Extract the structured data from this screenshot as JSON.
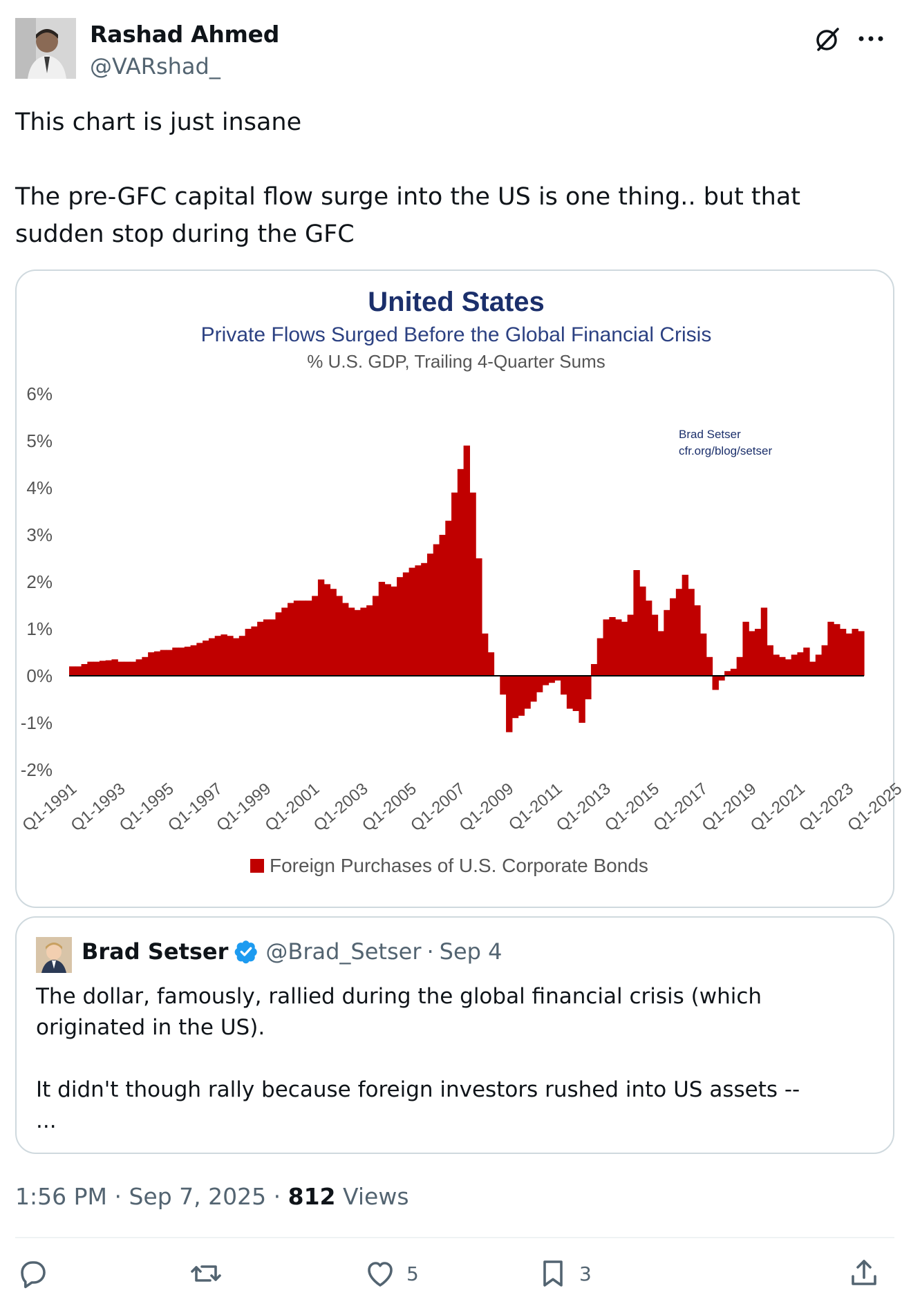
{
  "author": {
    "name": "Rashad Ahmed",
    "handle": "@VARshad_"
  },
  "tweet": {
    "text": "This chart is just insane\n\nThe pre-GFC capital flow surge into the US is one thing.. but that sudden stop during the GFC"
  },
  "chart_data": {
    "type": "bar",
    "title": "United States",
    "subtitle": "Private Flows Surged Before the Global Financial Crisis",
    "subtitle2": "% U.S. GDP, Trailing 4-Quarter Sums",
    "source_line1": "Brad Setser",
    "source_line2": "cfr.org/blog/setser",
    "ylim": [
      -2,
      6
    ],
    "y_ticks": [
      "6%",
      "5%",
      "4%",
      "3%",
      "2%",
      "1%",
      "0%",
      "-1%",
      "-2%"
    ],
    "y_tick_values": [
      6,
      5,
      4,
      3,
      2,
      1,
      0,
      -1,
      -2
    ],
    "x_tick_labels": [
      "Q1-1991",
      "Q1-1993",
      "Q1-1995",
      "Q1-1997",
      "Q1-1999",
      "Q1-2001",
      "Q1-2003",
      "Q1-2005",
      "Q1-2007",
      "Q1-2009",
      "Q1-2011",
      "Q1-2013",
      "Q1-2015",
      "Q1-2017",
      "Q1-2019",
      "Q1-2021",
      "Q1-2023",
      "Q1-2025"
    ],
    "x_start": "Q1-1991",
    "series": [
      {
        "name": "Foreign Purchases of U.S. Corporate Bonds",
        "color": "#c00000",
        "values": [
          0.2,
          0.2,
          0.25,
          0.3,
          0.3,
          0.32,
          0.33,
          0.35,
          0.3,
          0.3,
          0.3,
          0.35,
          0.4,
          0.5,
          0.52,
          0.55,
          0.55,
          0.6,
          0.6,
          0.62,
          0.65,
          0.7,
          0.75,
          0.8,
          0.85,
          0.88,
          0.85,
          0.8,
          0.85,
          1.0,
          1.05,
          1.15,
          1.2,
          1.2,
          1.35,
          1.45,
          1.55,
          1.6,
          1.6,
          1.6,
          1.7,
          2.05,
          1.95,
          1.85,
          1.7,
          1.55,
          1.45,
          1.4,
          1.45,
          1.5,
          1.7,
          2.0,
          1.95,
          1.9,
          2.1,
          2.2,
          2.3,
          2.35,
          2.4,
          2.6,
          2.8,
          3.0,
          3.3,
          3.9,
          4.4,
          4.9,
          3.9,
          2.5,
          0.9,
          0.5,
          0.0,
          -0.4,
          -1.2,
          -0.9,
          -0.85,
          -0.7,
          -0.55,
          -0.35,
          -0.2,
          -0.15,
          -0.1,
          -0.4,
          -0.7,
          -0.75,
          -1.0,
          -0.5,
          0.25,
          0.8,
          1.2,
          1.25,
          1.2,
          1.15,
          1.3,
          2.25,
          1.9,
          1.6,
          1.3,
          0.95,
          1.4,
          1.65,
          1.85,
          2.15,
          1.85,
          1.5,
          0.9,
          0.4,
          -0.3,
          -0.1,
          0.1,
          0.15,
          0.4,
          1.15,
          0.95,
          1.0,
          1.45,
          0.65,
          0.45,
          0.4,
          0.35,
          0.45,
          0.5,
          0.6,
          0.3,
          0.45,
          0.65,
          1.15,
          1.1,
          1.0,
          0.9,
          1.0,
          0.95
        ]
      }
    ],
    "legend": "Foreign Purchases of U.S. Corporate Bonds"
  },
  "quote": {
    "name": "Brad Setser",
    "handle": "@Brad_Setser",
    "separator": "·",
    "date": "Sep 4",
    "text": "The dollar, famously, rallied during the global financial crisis (which originated in the US).\n\nIt didn't though rally because foreign investors rushed into US assets --\n..."
  },
  "meta": {
    "time": "1:56 PM",
    "dot1": "·",
    "date": "Sep 7, 2025",
    "dot2": "·",
    "views_count": "812",
    "views_label": "Views"
  },
  "actions": {
    "likes": "5",
    "bookmarks": "3"
  },
  "colors": {
    "bar": "#c00000",
    "title": "#1b2f6b",
    "subtitle": "#2c4182",
    "verified": "#1d9bf0"
  }
}
